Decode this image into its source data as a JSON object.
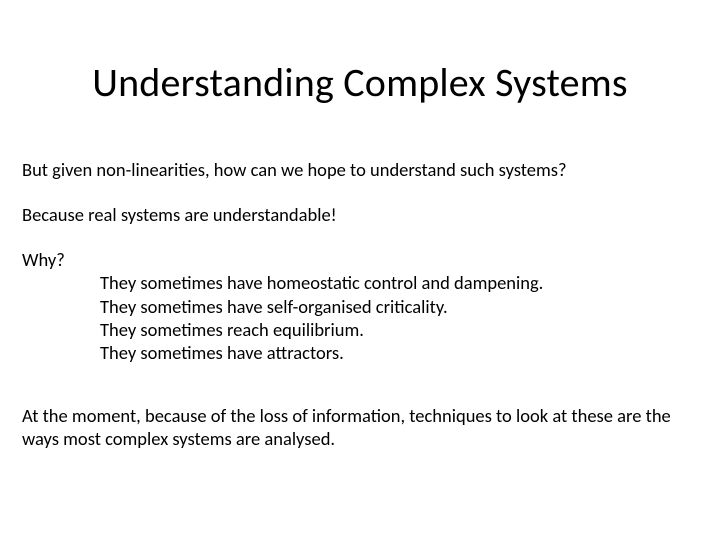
{
  "slide": {
    "title": "Understanding Complex Systems",
    "para1": "But given non-linearities, how can we hope to understand such systems?",
    "para2": "Because real systems are understandable!",
    "why_label": "Why?",
    "reasons": [
      "They sometimes have homeostatic control and dampening.",
      "They sometimes have self-organised criticality.",
      "They sometimes reach equilibrium.",
      "They sometimes have attractors."
    ],
    "closing": "At the moment, because of the loss of information, techniques to look at these are the ways most complex systems are analysed."
  },
  "style": {
    "background_color": "#ffffff",
    "text_color": "#000000",
    "title_fontsize": 40,
    "body_fontsize": 18.5,
    "font_family": "Calibri",
    "slide_width": 720,
    "slide_height": 540
  }
}
